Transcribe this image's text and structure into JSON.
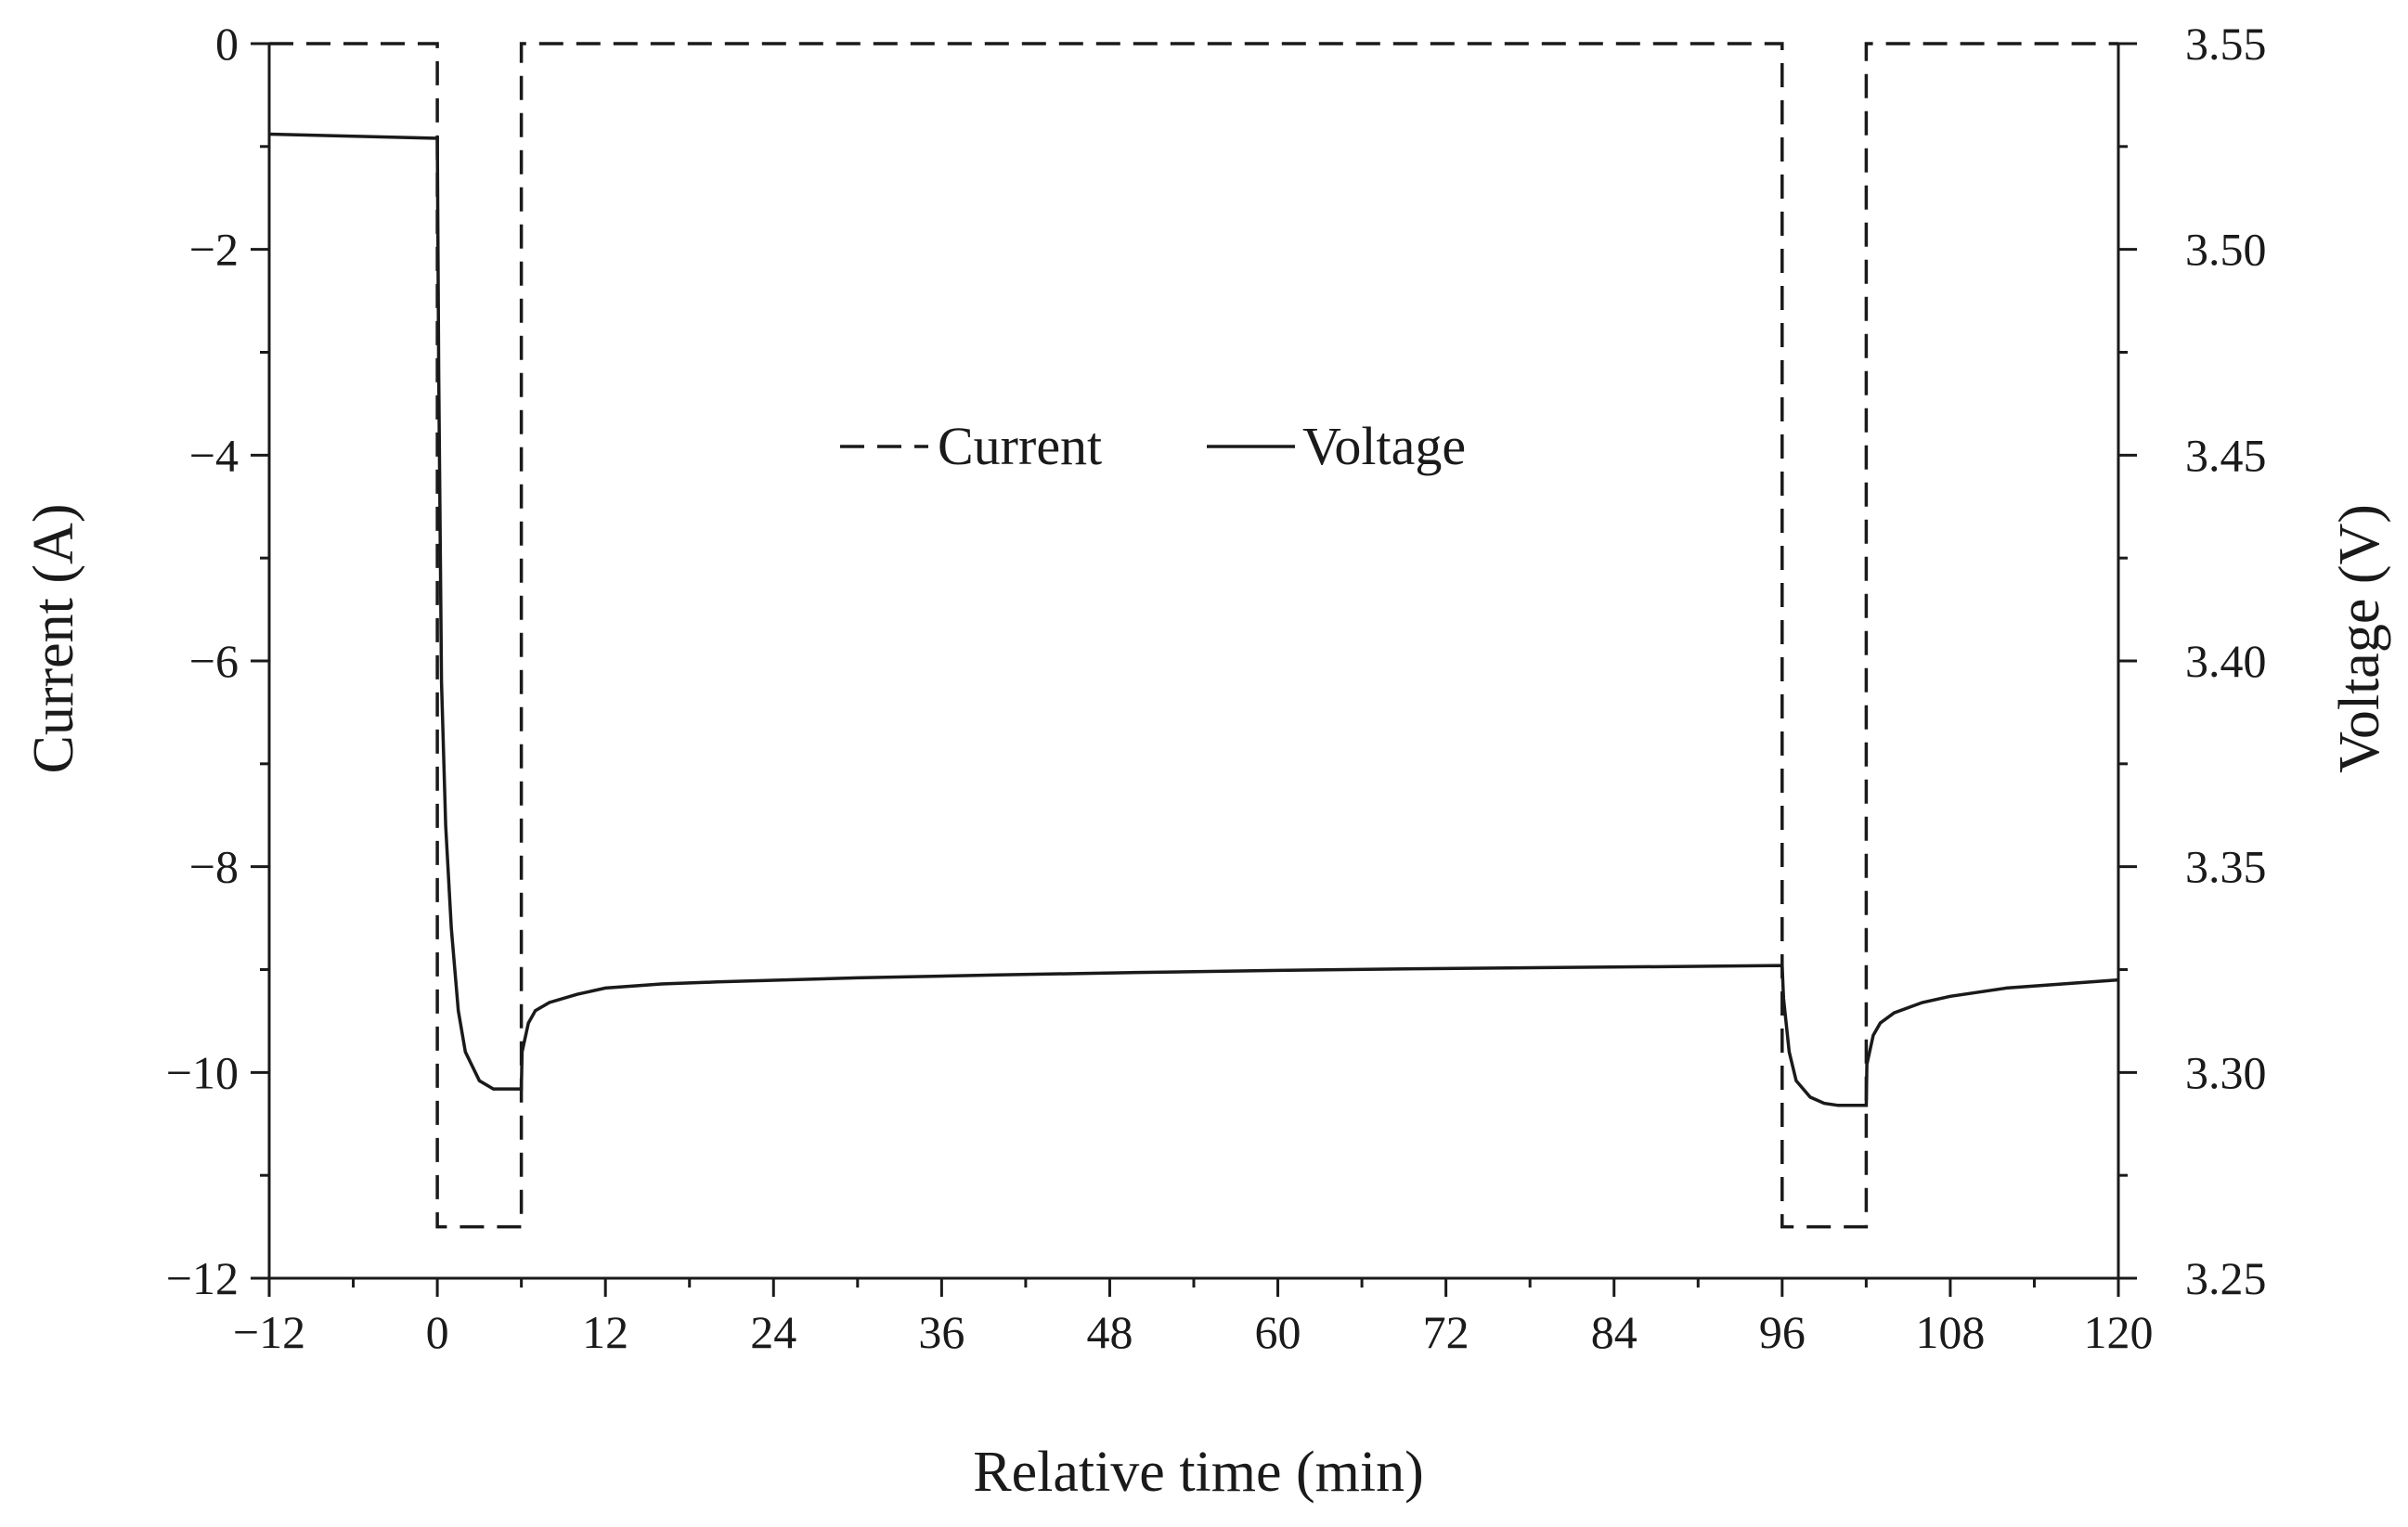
{
  "chart_data": {
    "type": "line",
    "xlabel": "Relative time (min)",
    "ylabel_left": "Current (A)",
    "ylabel_right": "Voltage (V)",
    "xlim": [
      -12,
      120
    ],
    "ylim_left": [
      -12,
      0
    ],
    "ylim_right": [
      3.25,
      3.55
    ],
    "x_ticks": [
      -12,
      0,
      12,
      24,
      36,
      48,
      60,
      72,
      84,
      96,
      108,
      120
    ],
    "x_tick_labels": [
      "−12",
      "0",
      "12",
      "24",
      "36",
      "48",
      "60",
      "72",
      "84",
      "96",
      "108",
      "120"
    ],
    "y_left_ticks": [
      0,
      -2,
      -4,
      -6,
      -8,
      -10,
      -12
    ],
    "y_left_tick_labels": [
      "0",
      "−2",
      "−4",
      "−6",
      "−8",
      "−10",
      "−12"
    ],
    "y_right_ticks": [
      3.55,
      3.5,
      3.45,
      3.4,
      3.35,
      3.3,
      3.25
    ],
    "y_right_tick_labels": [
      "3.55",
      "3.50",
      "3.45",
      "3.40",
      "3.35",
      "3.30",
      "3.25"
    ],
    "grid": false,
    "legend_position": "center",
    "series": [
      {
        "name": "Current",
        "axis": "left",
        "style": "dashed",
        "x": [
          -12,
          0,
          0,
          6,
          6,
          96,
          96,
          102,
          102,
          120
        ],
        "y": [
          0,
          0,
          -11.5,
          -11.5,
          0,
          0,
          -11.5,
          -11.5,
          0,
          0
        ]
      },
      {
        "name": "Voltage",
        "axis": "right",
        "style": "solid",
        "x": [
          -12,
          -6,
          0,
          0.1,
          0.3,
          0.6,
          1,
          1.5,
          2,
          3,
          4,
          5,
          6,
          6.05,
          6.5,
          7,
          8,
          10,
          12,
          16,
          20,
          30,
          40,
          50,
          60,
          70,
          80,
          90,
          96,
          96.1,
          96.5,
          97,
          98,
          99,
          100,
          102,
          102.05,
          102.5,
          103,
          104,
          106,
          108,
          112,
          116,
          120
        ],
        "y": [
          3.528,
          3.5275,
          3.527,
          3.47,
          3.395,
          3.36,
          3.335,
          3.315,
          3.305,
          3.298,
          3.296,
          3.296,
          3.296,
          3.305,
          3.312,
          3.315,
          3.317,
          3.319,
          3.3205,
          3.3215,
          3.322,
          3.323,
          3.3237,
          3.3243,
          3.3248,
          3.3252,
          3.3255,
          3.3258,
          3.326,
          3.318,
          3.305,
          3.298,
          3.294,
          3.2925,
          3.292,
          3.292,
          3.302,
          3.309,
          3.312,
          3.3145,
          3.317,
          3.3185,
          3.3205,
          3.3215,
          3.3225
        ]
      }
    ]
  }
}
